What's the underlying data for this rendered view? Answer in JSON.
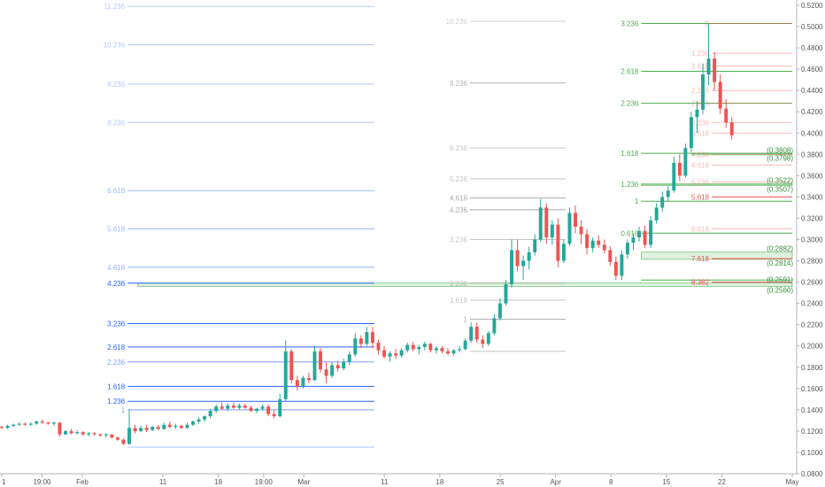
{
  "chart_data": {
    "type": "candlestick",
    "colors": {
      "up": "#26a69a",
      "down": "#ef5350"
    },
    "y_axis": {
      "side": "right",
      "ylim": [
        0.08,
        0.525
      ],
      "tick_labels": [
        "0.5200",
        "0.5000",
        "0.4800",
        "0.4600",
        "0.4400",
        "0.4200",
        "0.4000",
        "0.3800",
        "0.3600",
        "0.3400",
        "0.3200",
        "0.3000",
        "0.2800",
        "0.2600",
        "0.2400",
        "0.2200",
        "0.2000",
        "0.1800",
        "0.1600",
        "0.1400",
        "0.1200",
        "0.1000",
        "0.0800"
      ],
      "tick_values": [
        0.52,
        0.5,
        0.48,
        0.46,
        0.44,
        0.42,
        0.4,
        0.38,
        0.36,
        0.34,
        0.32,
        0.3,
        0.28,
        0.26,
        0.24,
        0.22,
        0.2,
        0.18,
        0.16,
        0.14,
        0.12,
        0.1,
        0.08
      ]
    },
    "x_axis": {
      "range": [
        0,
        157
      ],
      "ticks": [
        {
          "label": "1",
          "x": 0
        },
        {
          "label": "19:00",
          "x": 8
        },
        {
          "label": "Feb",
          "x": 16
        },
        {
          "label": "11",
          "x": 32
        },
        {
          "label": "18",
          "x": 43
        },
        {
          "label": "19:00",
          "x": 52
        },
        {
          "label": "Mar",
          "x": 60
        },
        {
          "label": "11",
          "x": 76
        },
        {
          "label": "18",
          "x": 87
        },
        {
          "label": "25",
          "x": 99
        },
        {
          "label": "Apr",
          "x": 110
        },
        {
          "label": "8",
          "x": 121
        },
        {
          "label": "15",
          "x": 132
        },
        {
          "label": "22",
          "x": 143
        },
        {
          "label": "May",
          "x": 157
        }
      ]
    },
    "fib_sets": [
      {
        "color": "#2962ff",
        "x_start": 25,
        "x_end": 74,
        "levels": [
          {
            "label": "11.236",
            "value": 0.519,
            "opacity": 0.35
          },
          {
            "label": "10.236",
            "value": 0.483,
            "opacity": 0.35
          },
          {
            "label": "9.236",
            "value": 0.446,
            "opacity": 0.35
          },
          {
            "label": "8.236",
            "value": 0.41,
            "opacity": 0.35
          },
          {
            "label": "6.618",
            "value": 0.346,
            "opacity": 0.45
          },
          {
            "label": "5.618",
            "value": 0.31,
            "opacity": 0.45
          },
          {
            "label": "4.618",
            "value": 0.274,
            "opacity": 0.5
          },
          {
            "label": "4.236",
            "value": 0.259,
            "opacity": 1
          },
          {
            "label": "3.236",
            "value": 0.221,
            "opacity": 1
          },
          {
            "label": "2.618",
            "value": 0.199,
            "opacity": 1
          },
          {
            "label": "2.236",
            "value": 0.185,
            "opacity": 0.6
          },
          {
            "label": "1.618",
            "value": 0.162,
            "opacity": 1
          },
          {
            "label": "1.236",
            "value": 0.148,
            "opacity": 1
          },
          {
            "label": "1",
            "value": 0.14,
            "opacity": 0.6
          },
          {
            "label": "",
            "value": 0.105,
            "opacity": 0.4
          }
        ]
      },
      {
        "color": "#9e9e9e",
        "x_start": 93,
        "x_end": 112,
        "levels": [
          {
            "label": "10.236",
            "value": 0.505,
            "opacity": 0.5
          },
          {
            "label": "8.236",
            "value": 0.447,
            "opacity": 0.8
          },
          {
            "label": "6.236",
            "value": 0.386,
            "opacity": 0.6
          },
          {
            "label": "5.236",
            "value": 0.357,
            "opacity": 0.6
          },
          {
            "label": "4.618",
            "value": 0.339,
            "opacity": 0.9
          },
          {
            "label": "4.236",
            "value": 0.328,
            "opacity": 0.9
          },
          {
            "label": "3.236",
            "value": 0.3,
            "opacity": 0.6
          },
          {
            "label": "2.236",
            "value": 0.259,
            "opacity": 0.6
          },
          {
            "label": "1.618",
            "value": 0.243,
            "opacity": 0.6
          },
          {
            "label": "1",
            "value": 0.225,
            "opacity": 0.9
          },
          {
            "label": "",
            "value": 0.195,
            "opacity": 0.6
          }
        ]
      },
      {
        "color": "#4caf50",
        "x_start": 127,
        "x_end": 157,
        "levels": [
          {
            "label": "3.236",
            "value": 0.503,
            "opacity": 1
          },
          {
            "label": "2.618",
            "value": 0.458,
            "opacity": 1
          },
          {
            "label": "2.236",
            "value": 0.428,
            "opacity": 1
          },
          {
            "label": "1.618",
            "value": 0.381,
            "opacity": 1
          },
          {
            "label": "1.236",
            "value": 0.352,
            "opacity": 1
          },
          {
            "label": "1",
            "value": 0.336,
            "opacity": 1
          },
          {
            "label": "0.618",
            "value": 0.306,
            "opacity": 1
          },
          {
            "label": "",
            "value": 0.262,
            "opacity": 1
          }
        ]
      },
      {
        "color": "#ef5350",
        "x_start": 141,
        "x_end": 157,
        "levels": [
          {
            "label": "0",
            "value": 0.503,
            "opacity": 0.5
          },
          {
            "label": "1.236",
            "value": 0.475,
            "opacity": 0.4
          },
          {
            "label": "1.618",
            "value": 0.463,
            "opacity": 0.4
          },
          {
            "label": "2.236",
            "value": 0.44,
            "opacity": 0.4
          },
          {
            "label": "2.618",
            "value": 0.428,
            "opacity": 0.4
          },
          {
            "label": "3.236",
            "value": 0.41,
            "opacity": 0.4
          },
          {
            "label": "3.618",
            "value": 0.4,
            "opacity": 0.4
          },
          {
            "label": "4.236",
            "value": 0.38,
            "opacity": 0.4
          },
          {
            "label": "4.618",
            "value": 0.37,
            "opacity": 0.4
          },
          {
            "label": "5.236",
            "value": 0.354,
            "opacity": 0.4
          },
          {
            "label": "5.618",
            "value": 0.34,
            "opacity": 1
          },
          {
            "label": "6.618",
            "value": 0.31,
            "opacity": 0.4
          },
          {
            "label": "7.618",
            "value": 0.282,
            "opacity": 1
          },
          {
            "label": "8.382",
            "value": 0.26,
            "opacity": 1
          }
        ]
      }
    ],
    "zones": [
      {
        "low": 0.256,
        "high": 0.2591,
        "x_start": 27,
        "x_end": 157,
        "color": "#4caf50"
      },
      {
        "low": 0.2814,
        "high": 0.2882,
        "x_start": 127,
        "x_end": 157,
        "color": "#4caf50"
      },
      {
        "low": 0.3507,
        "high": 0.3522,
        "x_start": 127,
        "x_end": 157,
        "color": "#4caf50"
      },
      {
        "low": 0.3798,
        "high": 0.3808,
        "x_start": 137,
        "x_end": 157,
        "color": "#4caf50"
      }
    ],
    "zone_labels": [
      {
        "text": "(0.3808)",
        "value": 0.3808
      },
      {
        "text": "(0.3798)",
        "value": 0.3798
      },
      {
        "text": "(0.3522)",
        "value": 0.3522
      },
      {
        "text": "(0.3507)",
        "value": 0.3507
      },
      {
        "text": "(0.2882)",
        "value": 0.2882
      },
      {
        "text": "(0.2814)",
        "value": 0.2814
      },
      {
        "text": "(0.2591)",
        "value": 0.2591
      },
      {
        "text": "(0.2560)",
        "value": 0.256
      }
    ],
    "candles": [
      [
        0.124,
        0.125,
        0.122,
        0.123
      ],
      [
        0.123,
        0.126,
        0.122,
        0.125
      ],
      [
        0.125,
        0.127,
        0.124,
        0.126
      ],
      [
        0.126,
        0.128,
        0.125,
        0.127
      ],
      [
        0.127,
        0.128,
        0.125,
        0.126
      ],
      [
        0.126,
        0.128,
        0.125,
        0.127
      ],
      [
        0.127,
        0.13,
        0.126,
        0.129
      ],
      [
        0.129,
        0.131,
        0.127,
        0.128
      ],
      [
        0.128,
        0.129,
        0.126,
        0.127
      ],
      [
        0.127,
        0.129,
        0.125,
        0.128
      ],
      [
        0.128,
        0.128,
        0.115,
        0.117
      ],
      [
        0.117,
        0.121,
        0.116,
        0.12
      ],
      [
        0.12,
        0.122,
        0.117,
        0.118
      ],
      [
        0.118,
        0.121,
        0.117,
        0.119
      ],
      [
        0.119,
        0.12,
        0.116,
        0.117
      ],
      [
        0.117,
        0.119,
        0.115,
        0.118
      ],
      [
        0.118,
        0.119,
        0.116,
        0.117
      ],
      [
        0.117,
        0.118,
        0.115,
        0.116
      ],
      [
        0.116,
        0.118,
        0.114,
        0.117
      ],
      [
        0.117,
        0.117,
        0.113,
        0.114
      ],
      [
        0.114,
        0.115,
        0.111,
        0.112
      ],
      [
        0.112,
        0.113,
        0.107,
        0.108
      ],
      [
        0.108,
        0.14,
        0.107,
        0.123
      ],
      [
        0.123,
        0.126,
        0.118,
        0.12
      ],
      [
        0.12,
        0.125,
        0.119,
        0.123
      ],
      [
        0.123,
        0.126,
        0.119,
        0.121
      ],
      [
        0.121,
        0.125,
        0.12,
        0.124
      ],
      [
        0.124,
        0.126,
        0.121,
        0.122
      ],
      [
        0.122,
        0.128,
        0.121,
        0.126
      ],
      [
        0.126,
        0.129,
        0.123,
        0.124
      ],
      [
        0.124,
        0.127,
        0.122,
        0.125
      ],
      [
        0.125,
        0.126,
        0.122,
        0.123
      ],
      [
        0.123,
        0.128,
        0.122,
        0.126
      ],
      [
        0.126,
        0.13,
        0.125,
        0.129
      ],
      [
        0.129,
        0.133,
        0.127,
        0.131
      ],
      [
        0.131,
        0.135,
        0.129,
        0.134
      ],
      [
        0.134,
        0.141,
        0.132,
        0.139
      ],
      [
        0.139,
        0.145,
        0.137,
        0.143
      ],
      [
        0.143,
        0.147,
        0.14,
        0.141
      ],
      [
        0.141,
        0.146,
        0.139,
        0.144
      ],
      [
        0.144,
        0.147,
        0.141,
        0.142
      ],
      [
        0.142,
        0.146,
        0.14,
        0.144
      ],
      [
        0.144,
        0.146,
        0.141,
        0.142
      ],
      [
        0.142,
        0.144,
        0.138,
        0.139
      ],
      [
        0.139,
        0.142,
        0.137,
        0.141
      ],
      [
        0.141,
        0.145,
        0.139,
        0.143
      ],
      [
        0.143,
        0.145,
        0.134,
        0.136
      ],
      [
        0.136,
        0.14,
        0.132,
        0.134
      ],
      [
        0.134,
        0.155,
        0.133,
        0.15
      ],
      [
        0.15,
        0.205,
        0.148,
        0.195
      ],
      [
        0.195,
        0.197,
        0.165,
        0.168
      ],
      [
        0.168,
        0.172,
        0.158,
        0.162
      ],
      [
        0.162,
        0.172,
        0.16,
        0.17
      ],
      [
        0.17,
        0.175,
        0.165,
        0.168
      ],
      [
        0.168,
        0.2,
        0.167,
        0.195
      ],
      [
        0.195,
        0.198,
        0.175,
        0.178
      ],
      [
        0.178,
        0.185,
        0.165,
        0.172
      ],
      [
        0.172,
        0.185,
        0.17,
        0.182
      ],
      [
        0.182,
        0.186,
        0.176,
        0.179
      ],
      [
        0.179,
        0.188,
        0.177,
        0.185
      ],
      [
        0.185,
        0.195,
        0.182,
        0.192
      ],
      [
        0.192,
        0.212,
        0.19,
        0.207
      ],
      [
        0.207,
        0.21,
        0.198,
        0.202
      ],
      [
        0.202,
        0.218,
        0.2,
        0.213
      ],
      [
        0.213,
        0.218,
        0.198,
        0.203
      ],
      [
        0.203,
        0.206,
        0.192,
        0.196
      ],
      [
        0.196,
        0.2,
        0.188,
        0.19
      ],
      [
        0.19,
        0.195,
        0.185,
        0.193
      ],
      [
        0.193,
        0.197,
        0.188,
        0.191
      ],
      [
        0.191,
        0.198,
        0.189,
        0.196
      ],
      [
        0.196,
        0.203,
        0.194,
        0.201
      ],
      [
        0.201,
        0.204,
        0.195,
        0.197
      ],
      [
        0.197,
        0.201,
        0.192,
        0.199
      ],
      [
        0.199,
        0.204,
        0.196,
        0.202
      ],
      [
        0.202,
        0.203,
        0.194,
        0.196
      ],
      [
        0.196,
        0.2,
        0.193,
        0.198
      ],
      [
        0.198,
        0.2,
        0.193,
        0.195
      ],
      [
        0.195,
        0.198,
        0.191,
        0.193
      ],
      [
        0.193,
        0.197,
        0.191,
        0.196
      ],
      [
        0.196,
        0.2,
        0.194,
        0.197
      ],
      [
        0.197,
        0.207,
        0.196,
        0.205
      ],
      [
        0.205,
        0.222,
        0.203,
        0.218
      ],
      [
        0.218,
        0.222,
        0.203,
        0.206
      ],
      [
        0.206,
        0.21,
        0.198,
        0.202
      ],
      [
        0.202,
        0.214,
        0.2,
        0.212
      ],
      [
        0.212,
        0.23,
        0.21,
        0.226
      ],
      [
        0.226,
        0.245,
        0.224,
        0.24
      ],
      [
        0.24,
        0.262,
        0.238,
        0.258
      ],
      [
        0.258,
        0.3,
        0.255,
        0.29
      ],
      [
        0.29,
        0.3,
        0.27,
        0.275
      ],
      [
        0.275,
        0.285,
        0.262,
        0.28
      ],
      [
        0.28,
        0.293,
        0.272,
        0.288
      ],
      [
        0.288,
        0.305,
        0.285,
        0.3
      ],
      [
        0.3,
        0.338,
        0.298,
        0.33
      ],
      [
        0.33,
        0.334,
        0.296,
        0.302
      ],
      [
        0.302,
        0.318,
        0.295,
        0.314
      ],
      [
        0.314,
        0.32,
        0.274,
        0.28
      ],
      [
        0.28,
        0.3,
        0.278,
        0.296
      ],
      [
        0.296,
        0.33,
        0.294,
        0.325
      ],
      [
        0.325,
        0.332,
        0.306,
        0.312
      ],
      [
        0.312,
        0.318,
        0.296,
        0.305
      ],
      [
        0.305,
        0.31,
        0.286,
        0.292
      ],
      [
        0.292,
        0.302,
        0.288,
        0.299
      ],
      [
        0.299,
        0.304,
        0.292,
        0.295
      ],
      [
        0.295,
        0.3,
        0.287,
        0.29
      ],
      [
        0.29,
        0.294,
        0.275,
        0.279
      ],
      [
        0.279,
        0.284,
        0.262,
        0.266
      ],
      [
        0.266,
        0.29,
        0.262,
        0.286
      ],
      [
        0.286,
        0.3,
        0.282,
        0.297
      ],
      [
        0.297,
        0.306,
        0.29,
        0.302
      ],
      [
        0.302,
        0.312,
        0.298,
        0.308
      ],
      [
        0.308,
        0.313,
        0.292,
        0.295
      ],
      [
        0.295,
        0.322,
        0.292,
        0.318
      ],
      [
        0.318,
        0.334,
        0.315,
        0.33
      ],
      [
        0.33,
        0.345,
        0.326,
        0.34
      ],
      [
        0.34,
        0.35,
        0.336,
        0.346
      ],
      [
        0.346,
        0.378,
        0.344,
        0.372
      ],
      [
        0.372,
        0.38,
        0.355,
        0.36
      ],
      [
        0.36,
        0.39,
        0.358,
        0.386
      ],
      [
        0.386,
        0.42,
        0.382,
        0.415
      ],
      [
        0.415,
        0.43,
        0.4,
        0.422
      ],
      [
        0.422,
        0.465,
        0.418,
        0.455
      ],
      [
        0.455,
        0.503,
        0.445,
        0.47
      ],
      [
        0.47,
        0.476,
        0.44,
        0.448
      ],
      [
        0.448,
        0.455,
        0.418,
        0.423
      ],
      [
        0.423,
        0.432,
        0.405,
        0.41
      ],
      [
        0.41,
        0.415,
        0.394,
        0.398
      ]
    ]
  }
}
